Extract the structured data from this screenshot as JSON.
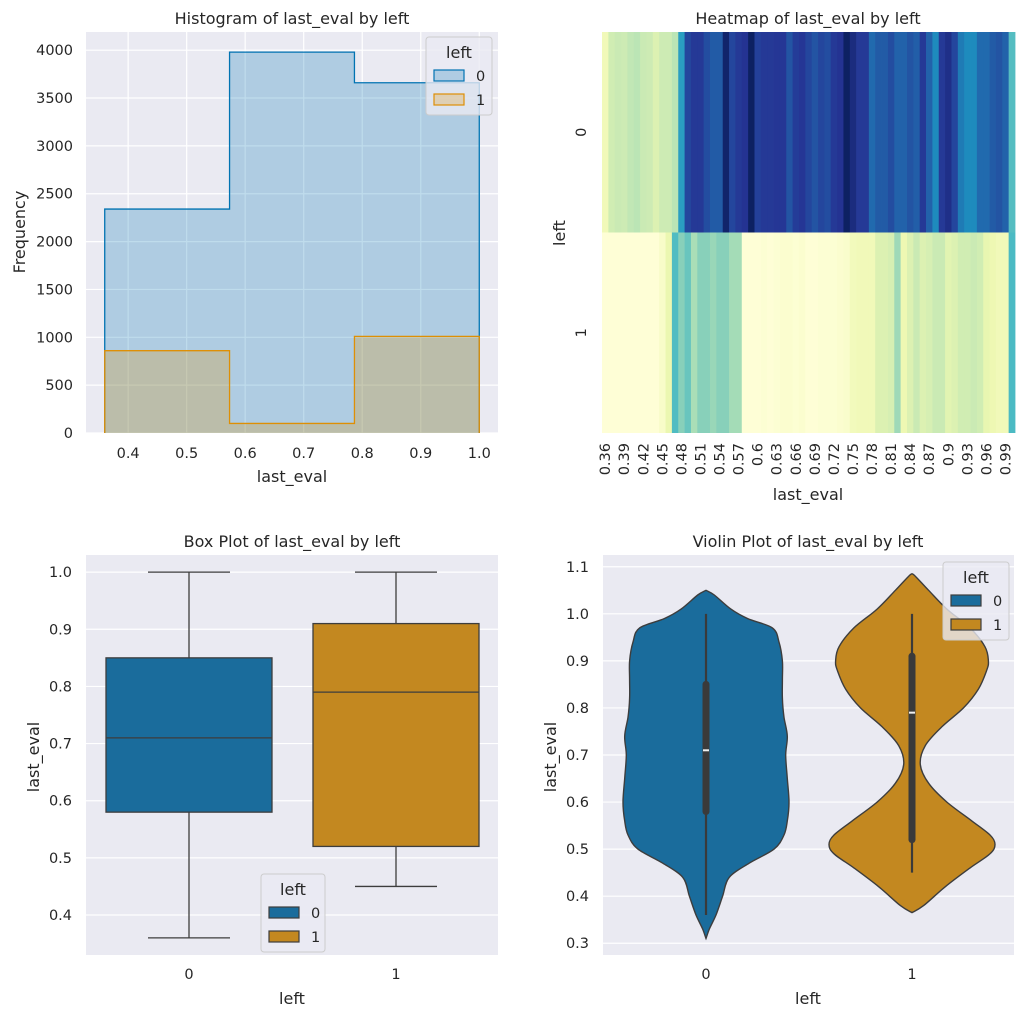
{
  "chart_data": [
    {
      "type": "histogram",
      "title": "Histogram of last_eval by left",
      "xlabel": "last_eval",
      "ylabel": "Frequency",
      "xlim": [
        0.328,
        1.032
      ],
      "ylim": [
        0,
        4190
      ],
      "xticks": [
        0.4,
        0.5,
        0.6,
        0.7,
        0.8,
        0.9,
        1.0
      ],
      "xtick_labels": [
        "0.4",
        "0.5",
        "0.6",
        "0.7",
        "0.8",
        "0.9",
        "1.0"
      ],
      "yticks": [
        0,
        500,
        1000,
        1500,
        2000,
        2500,
        3000,
        3500,
        4000
      ],
      "ytick_labels": [
        "0",
        "500",
        "1000",
        "1500",
        "2000",
        "2500",
        "3000",
        "3500",
        "4000"
      ],
      "bin_edges": [
        0.36,
        0.5733,
        0.7867,
        1.0
      ],
      "grid": true,
      "legend": {
        "title": "left",
        "placement": "top-right"
      },
      "series": [
        {
          "name": "0",
          "values": [
            2340,
            3980,
            3660
          ],
          "color": "#0173b2"
        },
        {
          "name": "1",
          "values": [
            860,
            100,
            1010
          ],
          "color": "#de8f05"
        }
      ]
    },
    {
      "type": "heatmap",
      "title": "Heatmap of last_eval by left",
      "xlabel": "last_eval",
      "ylabel": "left",
      "rows": [
        "0",
        "1"
      ],
      "columns": [
        0.36,
        0.37,
        0.38,
        0.39,
        0.4,
        0.41,
        0.42,
        0.43,
        0.44,
        0.45,
        0.46,
        0.47,
        0.48,
        0.49,
        0.5,
        0.51,
        0.52,
        0.53,
        0.54,
        0.55,
        0.56,
        0.57,
        0.58,
        0.59,
        0.6,
        0.61,
        0.62,
        0.63,
        0.64,
        0.65,
        0.66,
        0.67,
        0.68,
        0.69,
        0.7,
        0.71,
        0.72,
        0.73,
        0.74,
        0.75,
        0.76,
        0.77,
        0.78,
        0.79,
        0.8,
        0.81,
        0.82,
        0.83,
        0.84,
        0.85,
        0.86,
        0.87,
        0.88,
        0.89,
        0.9,
        0.91,
        0.92,
        0.93,
        0.94,
        0.95,
        0.96,
        0.97,
        0.98,
        0.99,
        1.0
      ],
      "xtick_labels": [
        "0.36",
        "0.39",
        "0.42",
        "0.45",
        "0.48",
        "0.51",
        "0.54",
        "0.57",
        "0.6",
        "0.63",
        "0.66",
        "0.69",
        "0.72",
        "0.75",
        "0.78",
        "0.81",
        "0.84",
        "0.87",
        "0.9",
        "0.93",
        "0.96",
        "0.99"
      ],
      "xtick_indices": [
        0,
        3,
        6,
        9,
        12,
        15,
        18,
        21,
        24,
        27,
        30,
        33,
        36,
        39,
        42,
        45,
        48,
        51,
        54,
        57,
        60,
        63
      ],
      "colormap": "YlGnBu",
      "colorbar": false,
      "values_normalized": [
        [
          0.1,
          0.22,
          0.24,
          0.23,
          0.26,
          0.27,
          0.24,
          0.23,
          0.18,
          0.23,
          0.23,
          0.27,
          0.58,
          0.82,
          0.86,
          0.86,
          0.8,
          0.76,
          0.76,
          0.96,
          0.82,
          0.86,
          0.88,
          0.98,
          0.84,
          0.86,
          0.86,
          0.87,
          0.87,
          0.78,
          0.85,
          0.87,
          0.82,
          0.78,
          0.82,
          0.8,
          0.86,
          0.88,
          0.98,
          0.92,
          0.86,
          0.86,
          0.72,
          0.76,
          0.76,
          0.8,
          0.74,
          0.74,
          0.78,
          0.75,
          0.86,
          0.74,
          0.64,
          0.86,
          0.9,
          0.82,
          0.68,
          0.64,
          0.64,
          0.72,
          0.72,
          0.76,
          0.78,
          0.74,
          0.46
        ],
        [
          0.01,
          0.01,
          0.01,
          0.01,
          0.01,
          0.01,
          0.01,
          0.01,
          0.01,
          0.05,
          0.13,
          0.47,
          0.36,
          0.42,
          0.3,
          0.36,
          0.36,
          0.33,
          0.36,
          0.36,
          0.31,
          0.31,
          0.01,
          0.01,
          0.01,
          0.02,
          0.01,
          0.02,
          0.03,
          0.03,
          0.02,
          0.03,
          0.01,
          0.01,
          0.02,
          0.02,
          0.02,
          0.03,
          0.04,
          0.09,
          0.1,
          0.1,
          0.1,
          0.18,
          0.18,
          0.2,
          0.32,
          0.12,
          0.18,
          0.24,
          0.18,
          0.2,
          0.24,
          0.24,
          0.16,
          0.18,
          0.22,
          0.22,
          0.24,
          0.22,
          0.14,
          0.12,
          0.1,
          0.1,
          0.48
        ]
      ]
    },
    {
      "type": "box",
      "title": "Box Plot of last_eval by left",
      "xlabel": "left",
      "ylabel": "last_eval",
      "categories": [
        "0",
        "1"
      ],
      "ylim": [
        0.33,
        1.03
      ],
      "yticks": [
        0.4,
        0.5,
        0.6,
        0.7,
        0.8,
        0.9,
        1.0
      ],
      "ytick_labels": [
        "0.4",
        "0.5",
        "0.6",
        "0.7",
        "0.8",
        "0.9",
        "1.0"
      ],
      "grid": true,
      "legend": {
        "title": "left",
        "placement": "lower-center"
      },
      "series": [
        {
          "name": "0",
          "min": 0.36,
          "q1": 0.58,
          "median": 0.71,
          "q3": 0.85,
          "max": 1.0,
          "color": "#1a6c9c"
        },
        {
          "name": "1",
          "min": 0.45,
          "q1": 0.52,
          "median": 0.79,
          "q3": 0.91,
          "max": 1.0,
          "color": "#c38820"
        }
      ]
    },
    {
      "type": "violin",
      "title": "Violin Plot of last_eval by left",
      "xlabel": "left",
      "ylabel": "last_eval",
      "categories": [
        "0",
        "1"
      ],
      "ylim": [
        0.275,
        1.125
      ],
      "yticks": [
        0.3,
        0.4,
        0.5,
        0.6,
        0.7,
        0.8,
        0.9,
        1.0,
        1.1
      ],
      "ytick_labels": [
        "0.3",
        "0.4",
        "0.5",
        "0.6",
        "0.7",
        "0.8",
        "0.9",
        "1.0",
        "1.1"
      ],
      "grid": true,
      "legend": {
        "title": "left",
        "placement": "top-right"
      },
      "series": [
        {
          "name": "0",
          "color": "#1a6c9c",
          "min": 0.36,
          "q1": 0.58,
          "median": 0.71,
          "q3": 0.85,
          "max": 1.0,
          "density_profile": [
            [
              0.31,
              0.0
            ],
            [
              0.33,
              0.04
            ],
            [
              0.36,
              0.12
            ],
            [
              0.4,
              0.2
            ],
            [
              0.44,
              0.28
            ],
            [
              0.47,
              0.52
            ],
            [
              0.5,
              0.82
            ],
            [
              0.53,
              0.94
            ],
            [
              0.56,
              0.98
            ],
            [
              0.6,
              1.0
            ],
            [
              0.65,
              0.98
            ],
            [
              0.7,
              0.96
            ],
            [
              0.74,
              0.98
            ],
            [
              0.78,
              0.94
            ],
            [
              0.82,
              0.92
            ],
            [
              0.86,
              0.92
            ],
            [
              0.9,
              0.92
            ],
            [
              0.94,
              0.88
            ],
            [
              0.97,
              0.8
            ],
            [
              0.99,
              0.5
            ],
            [
              1.01,
              0.3
            ],
            [
              1.04,
              0.1
            ],
            [
              1.05,
              0.0
            ]
          ]
        },
        {
          "name": "1",
          "color": "#c38820",
          "min": 0.45,
          "q1": 0.52,
          "median": 0.79,
          "q3": 0.91,
          "max": 1.0,
          "density_profile": [
            [
              0.365,
              0.0
            ],
            [
              0.38,
              0.14
            ],
            [
              0.42,
              0.4
            ],
            [
              0.46,
              0.7
            ],
            [
              0.49,
              0.94
            ],
            [
              0.51,
              1.0
            ],
            [
              0.53,
              0.94
            ],
            [
              0.56,
              0.72
            ],
            [
              0.6,
              0.42
            ],
            [
              0.64,
              0.2
            ],
            [
              0.68,
              0.1
            ],
            [
              0.72,
              0.16
            ],
            [
              0.76,
              0.36
            ],
            [
              0.8,
              0.62
            ],
            [
              0.84,
              0.8
            ],
            [
              0.88,
              0.9
            ],
            [
              0.9,
              0.92
            ],
            [
              0.93,
              0.88
            ],
            [
              0.97,
              0.7
            ],
            [
              1.01,
              0.42
            ],
            [
              1.05,
              0.2
            ],
            [
              1.08,
              0.04
            ],
            [
              1.085,
              0.0
            ]
          ]
        }
      ]
    }
  ]
}
